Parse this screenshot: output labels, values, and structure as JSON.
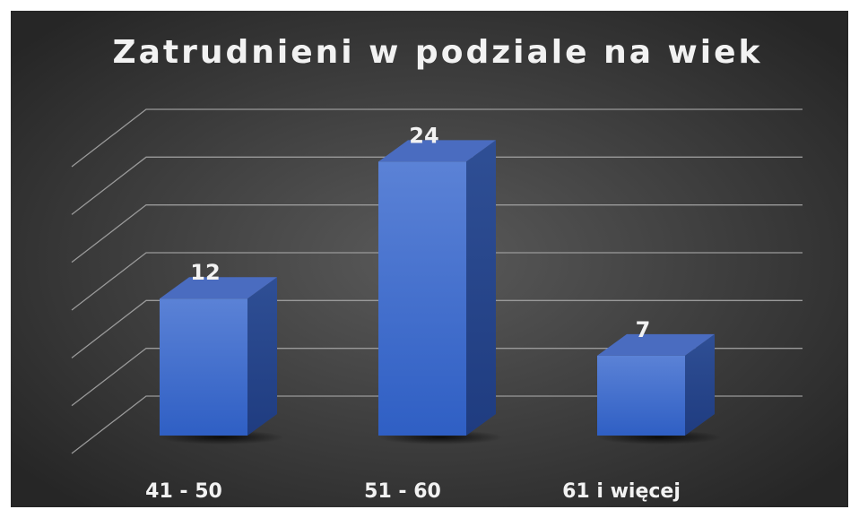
{
  "chart_data": {
    "type": "bar",
    "title": "Zatrudnieni w podziale na wiek",
    "categories": [
      "41 - 50",
      "51 - 60",
      "61 i więcej"
    ],
    "values": [
      12,
      24,
      7
    ],
    "color": "#4472c4",
    "ylim": [
      0,
      30
    ],
    "yticks": [
      0,
      5,
      10,
      15,
      20,
      25,
      30
    ],
    "grid": true
  }
}
